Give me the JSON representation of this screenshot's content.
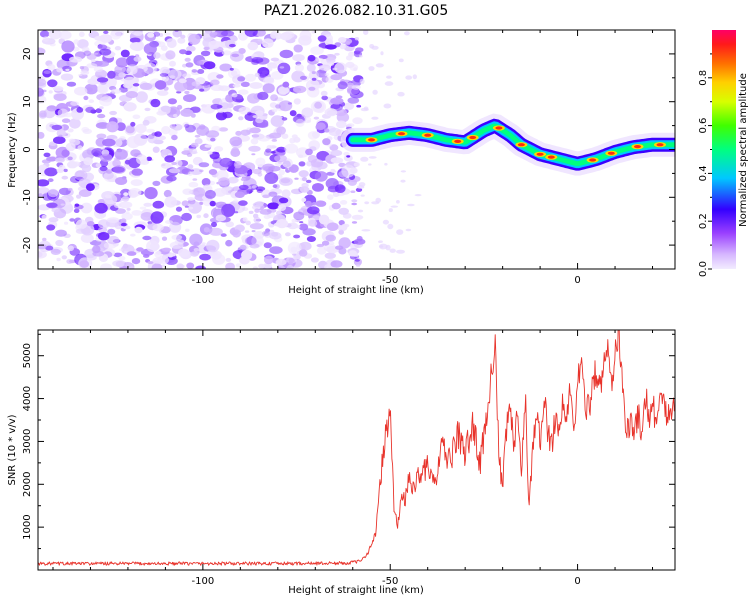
{
  "figure": {
    "title": "PAZ1.2026.082.10.31.G05"
  },
  "chart_data": [
    {
      "type": "heatmap",
      "title": "PAZ1.2026.082.10.31.G05",
      "xlabel": "Height of straight line (km)",
      "ylabel": "Frequency (Hz)",
      "xlim": [
        -144,
        26
      ],
      "ylim": [
        -25,
        25
      ],
      "x_ticks": [
        -100,
        -50,
        0
      ],
      "y_ticks": [
        -20,
        -10,
        0,
        10,
        20
      ],
      "noise_region_x": [
        -144,
        -58
      ],
      "ridge": {
        "x": [
          -60,
          -55,
          -50,
          -45,
          -40,
          -35,
          -30,
          -25,
          -22,
          -18,
          -15,
          -10,
          -5,
          0,
          5,
          10,
          15,
          20,
          26
        ],
        "freq": [
          2,
          2,
          3,
          3.5,
          3,
          2,
          1.5,
          4,
          5,
          3,
          1,
          -1,
          -2,
          -3,
          -2,
          -0.5,
          0.5,
          1,
          1
        ]
      },
      "colorbar": {
        "label": "Normalized spectral amplitude",
        "range": [
          0.0,
          1.0
        ],
        "ticks": [
          "0.0",
          "0.2",
          "0.4",
          "0.6",
          "0.8"
        ]
      }
    },
    {
      "type": "line",
      "xlabel": "Height of straight line (km)",
      "ylabel": "SNR (10 * v/v)",
      "xlim": [
        -144,
        26
      ],
      "ylim": [
        0,
        5600
      ],
      "x_ticks": [
        -100,
        -50,
        0
      ],
      "y_ticks": [
        1000,
        2000,
        3000,
        4000,
        5000
      ],
      "color": "#e8332b",
      "series": [
        {
          "name": "SNR",
          "x": [
            -144,
            -120,
            -100,
            -80,
            -62,
            -58,
            -56,
            -54,
            -53,
            -52,
            -51,
            -50,
            -49,
            -48,
            -47,
            -46,
            -45,
            -44,
            -42,
            -40,
            -38,
            -36,
            -34,
            -32,
            -30,
            -28,
            -26,
            -24,
            -23,
            -22,
            -21,
            -20,
            -19,
            -18,
            -17,
            -16,
            -15,
            -14,
            -13,
            -12,
            -11,
            -10,
            -9,
            -8,
            -7,
            -6,
            -5,
            -4,
            -3,
            -2,
            -1,
            0,
            1,
            2,
            3,
            4,
            5,
            6,
            7,
            8,
            9,
            10,
            11,
            12,
            13,
            14,
            15,
            16,
            17,
            18,
            19,
            20,
            21,
            22,
            23,
            24,
            25,
            26
          ],
          "y": [
            150,
            150,
            150,
            150,
            160,
            200,
            400,
            800,
            1700,
            2600,
            3300,
            3600,
            1500,
            1000,
            1800,
            1600,
            2100,
            1900,
            2300,
            2400,
            2000,
            2900,
            2500,
            3200,
            2700,
            3400,
            2500,
            3700,
            4800,
            5200,
            2600,
            1900,
            3200,
            3900,
            2800,
            3600,
            2200,
            4100,
            1500,
            2800,
            3500,
            3000,
            4000,
            3300,
            2900,
            3600,
            3200,
            3900,
            3500,
            4100,
            3400,
            4300,
            4800,
            4000,
            3700,
            4400,
            4700,
            4100,
            4800,
            5200,
            4300,
            5100,
            5600,
            4200,
            3200,
            3500,
            3000,
            3700,
            3300,
            4100,
            3600,
            3900,
            3500,
            4000,
            3800,
            3600,
            3900,
            3800
          ]
        }
      ]
    }
  ]
}
